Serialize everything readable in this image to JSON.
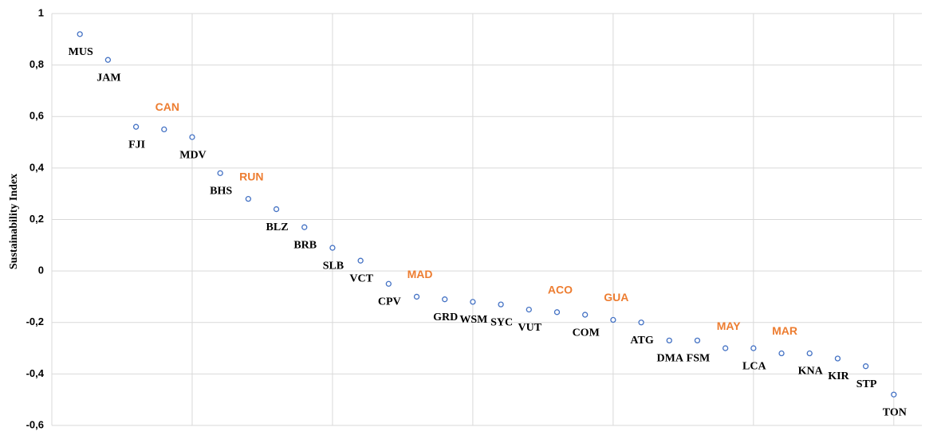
{
  "chart_data": {
    "type": "scatter",
    "y_label": "Sustainability Index",
    "labels": [
      "MUS",
      "JAM",
      "FJI",
      "CAN",
      "MDV",
      "BHS",
      "RUN",
      "BLZ",
      "BRB",
      "SLB",
      "VCT",
      "CPV",
      "MAD",
      "GRD",
      "WSM",
      "SYC",
      "VUT",
      "ACO",
      "COM",
      "GUA",
      "ATG",
      "DMA",
      "FSM",
      "MAY",
      "LCA",
      "MAR",
      "KNA",
      "KIR",
      "STP",
      "TON"
    ],
    "x": [
      1,
      2,
      3,
      4,
      5,
      6,
      7,
      8,
      9,
      10,
      11,
      12,
      13,
      14,
      15,
      16,
      17,
      18,
      19,
      20,
      21,
      22,
      23,
      24,
      25,
      26,
      27,
      28,
      29,
      30
    ],
    "values": [
      0.92,
      0.82,
      0.56,
      0.55,
      0.52,
      0.38,
      0.28,
      0.24,
      0.17,
      0.09,
      0.04,
      -0.05,
      -0.1,
      -0.11,
      -0.12,
      -0.13,
      -0.15,
      -0.16,
      -0.17,
      -0.19,
      -0.2,
      -0.27,
      -0.27,
      -0.3,
      -0.3,
      -0.32,
      -0.32,
      -0.34,
      -0.37,
      -0.48
    ],
    "label_colors": [
      "#000000",
      "#000000",
      "#000000",
      "#ed7d31",
      "#000000",
      "#000000",
      "#ed7d31",
      "#000000",
      "#000000",
      "#000000",
      "#000000",
      "#000000",
      "#ed7d31",
      "#000000",
      "#000000",
      "#000000",
      "#000000",
      "#ed7d31",
      "#000000",
      "#ed7d31",
      "#000000",
      "#000000",
      "#000000",
      "#ed7d31",
      "#000000",
      "#ed7d31",
      "#000000",
      "#000000",
      "#000000",
      "#000000"
    ],
    "marker_color": "#4472c4",
    "xlim": [
      0,
      31
    ],
    "xgrid": [
      5,
      10,
      15,
      20,
      25,
      30
    ],
    "ylim": [
      -0.6,
      1
    ],
    "yticks": [
      {
        "value": -0.6,
        "label": "-0,6"
      },
      {
        "value": -0.4,
        "label": "-0,4"
      },
      {
        "value": -0.2,
        "label": "-0,2"
      },
      0,
      {
        "value": 0.2,
        "label": "0,2"
      },
      {
        "value": 0.4,
        "label": "0,4"
      },
      {
        "value": 0.6,
        "label": "0,6"
      },
      {
        "value": 0.8,
        "label": "0,8"
      },
      1
    ],
    "grid": true
  }
}
